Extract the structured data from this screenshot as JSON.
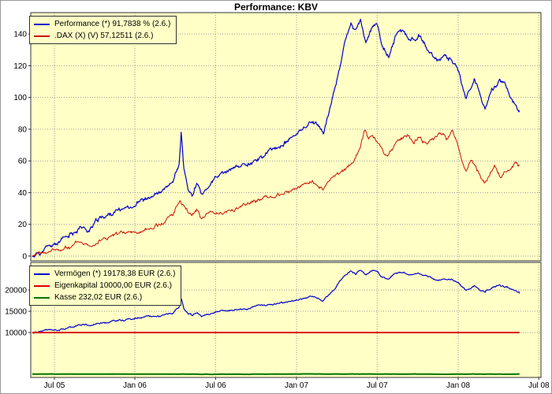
{
  "title": "Performance: KBV",
  "annotations": {
    "top_right": "Jul 08"
  },
  "colors": {
    "panel_bg": "#ffffc6",
    "grid": "#9c9c9c",
    "border": "#333333",
    "performance_blue": "#0000cc",
    "dax_red": "#cc1100",
    "eigenkapital_red": "#dd0000",
    "kasse_green": "#007700"
  },
  "x_axis": {
    "ticks": [
      {
        "label": "Jul 05",
        "t": 0.0464
      },
      {
        "label": "Jan 06",
        "t": 0.204
      },
      {
        "label": "Jul 06",
        "t": 0.3623
      },
      {
        "label": "Jan 07",
        "t": 0.5209
      },
      {
        "label": "Jul 07",
        "t": 0.679
      },
      {
        "label": "Jan 08",
        "t": 0.8378
      },
      {
        "label": "Jul 08",
        "t": 0.9958
      }
    ]
  },
  "chart_data": [
    {
      "type": "line",
      "panel": "performance",
      "ylabel": "",
      "ylim": [
        -3,
        153.5
      ],
      "yticks": [
        0,
        20,
        40,
        60,
        80,
        100,
        120,
        140
      ],
      "grid": true,
      "legend_position": "top-left",
      "series": [
        {
          "id": "performance",
          "name": "Performance (*) 91,7838 % (2.6.)",
          "color": "#0000cc",
          "width": 1.2,
          "noise": 2.0,
          "seed": 11,
          "final": 91.7838,
          "keypoints": [
            [
              0.003,
              0
            ],
            [
              0.026,
              4
            ],
            [
              0.049,
              7
            ],
            [
              0.073,
              11
            ],
            [
              0.096,
              19
            ],
            [
              0.114,
              16
            ],
            [
              0.134,
              23
            ],
            [
              0.158,
              27
            ],
            [
              0.185,
              30
            ],
            [
              0.212,
              35
            ],
            [
              0.238,
              37
            ],
            [
              0.258,
              40
            ],
            [
              0.278,
              45
            ],
            [
              0.291,
              58
            ],
            [
              0.295,
              78
            ],
            [
              0.3,
              55
            ],
            [
              0.308,
              42
            ],
            [
              0.317,
              38
            ],
            [
              0.326,
              47
            ],
            [
              0.335,
              37
            ],
            [
              0.346,
              43
            ],
            [
              0.363,
              49
            ],
            [
              0.39,
              53
            ],
            [
              0.42,
              58
            ],
            [
              0.451,
              63
            ],
            [
              0.485,
              69
            ],
            [
              0.521,
              76
            ],
            [
              0.547,
              85
            ],
            [
              0.563,
              83
            ],
            [
              0.573,
              78
            ],
            [
              0.587,
              93
            ],
            [
              0.603,
              115
            ],
            [
              0.615,
              135
            ],
            [
              0.628,
              146
            ],
            [
              0.637,
              141
            ],
            [
              0.646,
              147
            ],
            [
              0.657,
              134
            ],
            [
              0.668,
              143
            ],
            [
              0.679,
              145
            ],
            [
              0.689,
              132
            ],
            [
              0.702,
              126
            ],
            [
              0.714,
              138
            ],
            [
              0.73,
              142
            ],
            [
              0.745,
              135
            ],
            [
              0.76,
              140
            ],
            [
              0.776,
              131
            ],
            [
              0.796,
              121
            ],
            [
              0.811,
              127
            ],
            [
              0.827,
              124
            ],
            [
              0.839,
              117
            ],
            [
              0.853,
              99
            ],
            [
              0.869,
              109
            ],
            [
              0.879,
              103
            ],
            [
              0.89,
              94
            ],
            [
              0.903,
              104
            ],
            [
              0.918,
              111
            ],
            [
              0.932,
              107
            ],
            [
              0.944,
              99
            ],
            [
              0.954,
              93
            ],
            [
              0.958,
              91.7838
            ]
          ]
        },
        {
          "id": "dax",
          "name": ".DAX (X) (V) 57,12511 (2.6.)",
          "color": "#cc1100",
          "width": 1,
          "noise": 1.6,
          "seed": 23,
          "final": 57.12511,
          "keypoints": [
            [
              0.003,
              0
            ],
            [
              0.03,
              2
            ],
            [
              0.05,
              3.5
            ],
            [
              0.08,
              6
            ],
            [
              0.096,
              9
            ],
            [
              0.114,
              7.5
            ],
            [
              0.134,
              11
            ],
            [
              0.16,
              12.5
            ],
            [
              0.19,
              14
            ],
            [
              0.212,
              15
            ],
            [
              0.24,
              18
            ],
            [
              0.26,
              21
            ],
            [
              0.278,
              26
            ],
            [
              0.293,
              36
            ],
            [
              0.305,
              30
            ],
            [
              0.315,
              26
            ],
            [
              0.326,
              30
            ],
            [
              0.335,
              24
            ],
            [
              0.346,
              28
            ],
            [
              0.363,
              27
            ],
            [
              0.39,
              29
            ],
            [
              0.42,
              32
            ],
            [
              0.451,
              35
            ],
            [
              0.485,
              38
            ],
            [
              0.521,
              42
            ],
            [
              0.55,
              47
            ],
            [
              0.563,
              45
            ],
            [
              0.573,
              42
            ],
            [
              0.59,
              48
            ],
            [
              0.61,
              52
            ],
            [
              0.63,
              58
            ],
            [
              0.64,
              65
            ],
            [
              0.649,
              74
            ],
            [
              0.655,
              80
            ],
            [
              0.662,
              74
            ],
            [
              0.67,
              77
            ],
            [
              0.679,
              73
            ],
            [
              0.69,
              67
            ],
            [
              0.7,
              64
            ],
            [
              0.712,
              70
            ],
            [
              0.725,
              74
            ],
            [
              0.738,
              77
            ],
            [
              0.75,
              72
            ],
            [
              0.762,
              76
            ],
            [
              0.776,
              71
            ],
            [
              0.79,
              74
            ],
            [
              0.803,
              77
            ],
            [
              0.815,
              74
            ],
            [
              0.827,
              78
            ],
            [
              0.836,
              72
            ],
            [
              0.845,
              62
            ],
            [
              0.853,
              55
            ],
            [
              0.862,
              60
            ],
            [
              0.872,
              55
            ],
            [
              0.882,
              50
            ],
            [
              0.89,
              46
            ],
            [
              0.9,
              51
            ],
            [
              0.91,
              55
            ],
            [
              0.92,
              50
            ],
            [
              0.93,
              53
            ],
            [
              0.94,
              56
            ],
            [
              0.95,
              60
            ],
            [
              0.958,
              57.12511
            ]
          ]
        }
      ]
    },
    {
      "type": "line",
      "panel": "accounts",
      "ylabel": "",
      "ylim": [
        -560,
        26480
      ],
      "yticks": [
        10000,
        15000,
        20000
      ],
      "grid": true,
      "legend_position": "top-left",
      "series": [
        {
          "id": "vermoegen",
          "name": "Vermögen (*) 19178,38 EUR (2.6.)",
          "color": "#0000cc",
          "width": 1.2,
          "noise": 260,
          "seed": 31,
          "final": 19178.38,
          "derive": {
            "panel": 0,
            "series": 0,
            "scale": 100,
            "offset": 10000
          }
        },
        {
          "id": "eigenkapital",
          "name": "Eigenkapital 10000,00 EUR (2.6.)",
          "color": "#dd0000",
          "width": 2,
          "noise": 0,
          "seed": 5,
          "final": 10000,
          "keypoints": [
            [
              0.003,
              10000
            ],
            [
              0.958,
              10000
            ]
          ]
        },
        {
          "id": "kasse",
          "name": "Kasse 232,02 EUR (2.6.)",
          "color": "#007700",
          "width": 2,
          "noise": 30,
          "seed": 47,
          "final": 232.02,
          "keypoints": [
            [
              0.003,
              240
            ],
            [
              0.15,
              230
            ],
            [
              0.3,
              250
            ],
            [
              0.33,
              180
            ],
            [
              0.5,
              240
            ],
            [
              0.63,
              260
            ],
            [
              0.8,
              220
            ],
            [
              0.958,
              232.02
            ]
          ]
        }
      ]
    }
  ]
}
